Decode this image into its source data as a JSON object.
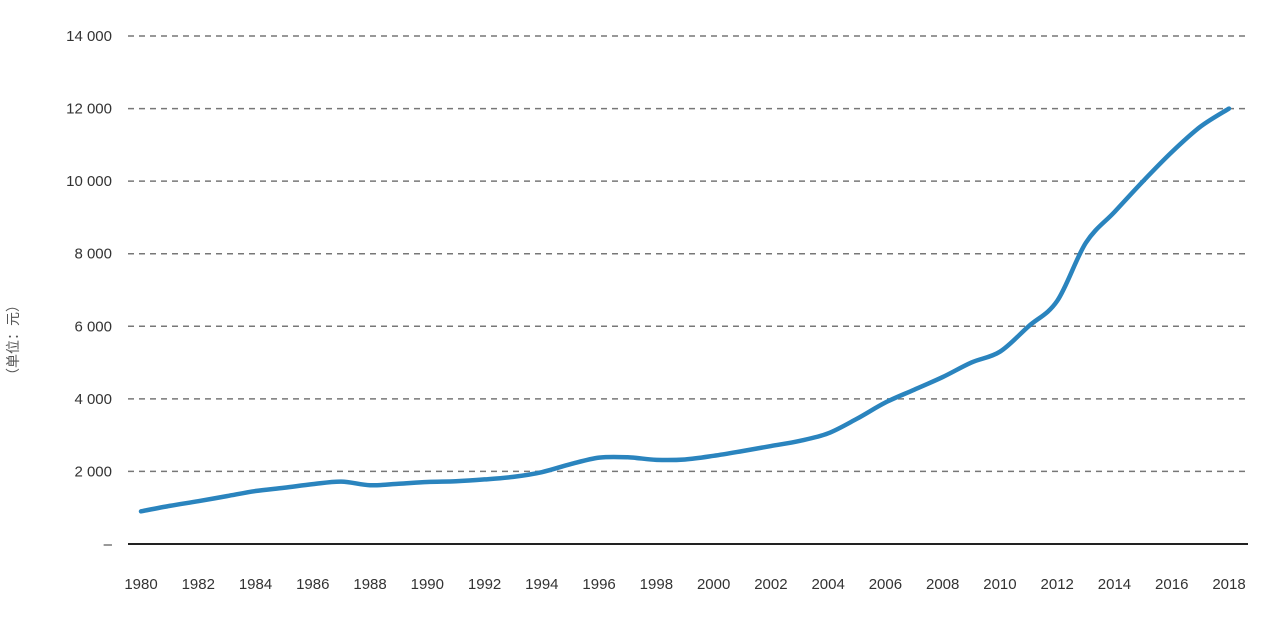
{
  "chart_data": {
    "type": "line",
    "title": "",
    "xlabel": "",
    "ylabel": "（单位：元）",
    "x": [
      1980,
      1981,
      1982,
      1983,
      1984,
      1985,
      1986,
      1987,
      1988,
      1989,
      1990,
      1991,
      1992,
      1993,
      1994,
      1995,
      1996,
      1997,
      1998,
      1999,
      2000,
      2001,
      2002,
      2003,
      2004,
      2005,
      2006,
      2007,
      2008,
      2009,
      2010,
      2011,
      2012,
      2013,
      2014,
      2015,
      2016,
      2017,
      2018
    ],
    "series": [
      {
        "values": [
          900,
          1050,
          1180,
          1320,
          1460,
          1550,
          1650,
          1720,
          1620,
          1660,
          1710,
          1730,
          1780,
          1850,
          1980,
          2200,
          2380,
          2390,
          2320,
          2330,
          2430,
          2560,
          2700,
          2840,
          3050,
          3450,
          3900,
          4250,
          4600,
          5000,
          5300,
          6000,
          6700,
          8300,
          9150,
          10000,
          10800,
          11500,
          12000
        ],
        "color": "#2a84be"
      }
    ],
    "x_tick_labels": [
      "1980",
      "1982",
      "1984",
      "1986",
      "1988",
      "1990",
      "1992",
      "1994",
      "1996",
      "1998",
      "2000",
      "2002",
      "2004",
      "2006",
      "2008",
      "2010",
      "2012",
      "2014",
      "2016",
      "2018"
    ],
    "y_tick_labels": [
      "–",
      "2 000",
      "4 000",
      "6 000",
      "8 000",
      "10 000",
      "12 000",
      "14 000"
    ],
    "ylim": [
      0,
      14000
    ],
    "xlim": [
      1980,
      2018
    ],
    "grid": "horizontal dashed",
    "legend": "none"
  }
}
